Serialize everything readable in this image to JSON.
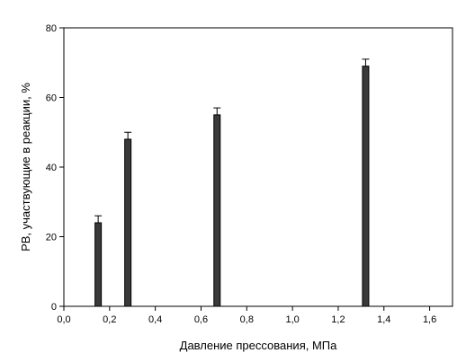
{
  "chart_data": {
    "type": "bar",
    "title": "",
    "xlabel": "Давление прессования, МПа",
    "ylabel": "РВ, участвующие в реакции, %",
    "x": [
      0.15,
      0.28,
      0.67,
      1.32
    ],
    "values": [
      24,
      48,
      55,
      69
    ],
    "errors": [
      2,
      2,
      2,
      2
    ],
    "xlim": [
      0,
      1.7
    ],
    "ylim": [
      0,
      80
    ],
    "xticks": [
      0,
      0.2,
      0.4,
      0.6,
      0.8,
      1.0,
      1.2,
      1.4,
      1.6
    ],
    "xtick_labels": [
      "0,0",
      "0,2",
      "0,4",
      "0,6",
      "0,8",
      "1,0",
      "1,2",
      "1,4",
      "1,6"
    ],
    "yticks": [
      0,
      20,
      40,
      60,
      80
    ],
    "ytick_labels": [
      "0",
      "20",
      "40",
      "60",
      "80"
    ],
    "bar_width": 0.02,
    "grid": false,
    "legend": "none",
    "colors": {
      "bar_fill": "#3a3a3a",
      "bar_stroke": "#000000",
      "axis": "#000000",
      "text": "#000000"
    }
  }
}
